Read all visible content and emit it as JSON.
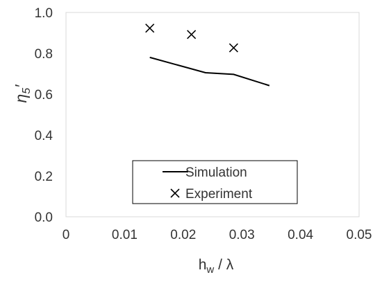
{
  "chart_data": {
    "type": "scatter",
    "xlabel": "h_w / λ",
    "ylabel": "η_5′",
    "xlim": [
      0,
      0.05
    ],
    "ylim": [
      0,
      1.0
    ],
    "x_ticks": [
      0,
      0.01,
      0.02,
      0.03,
      0.04,
      0.05
    ],
    "x_tick_labels": [
      "0",
      "0.01",
      "0.02",
      "0.03",
      "0.04",
      "0.05"
    ],
    "y_ticks": [
      0,
      0.2,
      0.4,
      0.6,
      0.8,
      1.0
    ],
    "y_tick_labels": [
      "0.0",
      "0.2",
      "0.4",
      "0.6",
      "0.8",
      "1.0"
    ],
    "grid": false,
    "legend_position": "bottom-center",
    "series": [
      {
        "name": "Simulation",
        "kind": "line",
        "color": "#000000",
        "x": [
          0.0143,
          0.0238,
          0.0286,
          0.0347
        ],
        "y": [
          0.78,
          0.705,
          0.697,
          0.642
        ]
      },
      {
        "name": "Experiment",
        "kind": "marker",
        "marker": "x",
        "color": "#000000",
        "x": [
          0.0143,
          0.0214,
          0.0286
        ],
        "y": [
          0.923,
          0.892,
          0.827
        ]
      }
    ]
  }
}
